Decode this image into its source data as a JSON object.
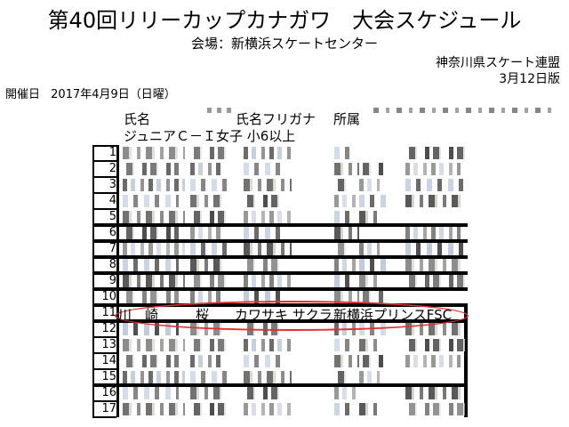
{
  "header": {
    "title": "第40回リリーカップカナガワ　大会スケジュール",
    "venue": "会場：新横浜スケートセンター",
    "organizer": "神奈川県スケート連盟",
    "version": "3月12日版"
  },
  "event": {
    "date_label": "開催日",
    "date": "2017年4月9日（日曜）"
  },
  "table": {
    "headers": {
      "name": "氏名",
      "kana": "氏名フリガナ",
      "club": "所属"
    },
    "category": "ジュニアＣ－Ｉ女子 小6以上",
    "row_numbers": [
      "1",
      "2",
      "3",
      "4",
      "5",
      "6",
      "7",
      "8",
      "9",
      "10",
      "11",
      "12",
      "13",
      "14",
      "15",
      "16",
      "17"
    ],
    "highlighted_row": {
      "number": "11",
      "name_family": "川　崎",
      "name_given": "桜",
      "kana": "カワサキ サクラ",
      "club": "新横浜プリンスFSC"
    }
  },
  "colors": {
    "highlight_ring": "#e03030"
  }
}
